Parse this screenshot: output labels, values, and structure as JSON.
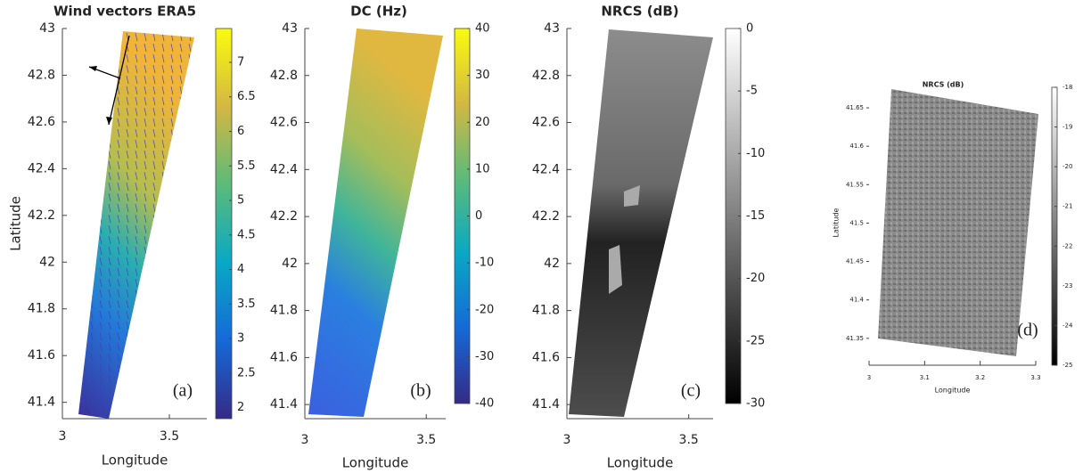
{
  "chart_data": [
    {
      "type": "image",
      "title": "Wind vectors ERA5",
      "xlabel": "Longitude",
      "ylabel": "Latitude",
      "panel_label": "(a)",
      "xlim": [
        3,
        3.675
      ],
      "xticks": [
        3,
        3.5
      ],
      "ylim": [
        41.33,
        43
      ],
      "yticks": [
        41.4,
        41.6,
        41.8,
        42,
        42.2,
        42.4,
        42.6,
        42.8,
        43
      ],
      "colormap": "parula",
      "clim": [
        1.84,
        7.49
      ],
      "cticks": [
        2,
        2.5,
        3,
        3.5,
        4,
        4.5,
        5,
        5.5,
        6,
        6.5,
        7
      ]
    },
    {
      "type": "image",
      "title": "DC (Hz)",
      "xlabel": "Longitude",
      "panel_label": "(b)",
      "xlim": [
        3,
        3.58
      ],
      "xticks": [
        3,
        3.5
      ],
      "ylim": [
        41.34,
        43
      ],
      "yticks": [
        41.4,
        41.6,
        41.8,
        42,
        42.2,
        42.4,
        42.6,
        42.8,
        43
      ],
      "colormap": "parula",
      "clim": [
        -40,
        40
      ],
      "cticks": [
        -40,
        -30,
        -20,
        -10,
        0,
        10,
        20,
        30,
        40
      ]
    },
    {
      "type": "image",
      "title": "NRCS (dB)",
      "xlabel": "Longitude",
      "panel_label": "(c)",
      "xlim": [
        3,
        3.6
      ],
      "xticks": [
        3,
        3.5
      ],
      "ylim": [
        41.34,
        43
      ],
      "yticks": [
        41.4,
        41.6,
        41.8,
        42,
        42.2,
        42.4,
        42.6,
        42.8,
        43
      ],
      "colormap": "gray",
      "clim": [
        -30,
        0
      ],
      "cticks": [
        -30,
        -25,
        -20,
        -15,
        -10,
        -5,
        0
      ]
    },
    {
      "type": "image",
      "title": "NRCS (dB)",
      "xlabel": "Longitude",
      "ylabel": "Latitude",
      "panel_label": "(d)",
      "xlim": [
        3,
        3.3
      ],
      "xticks": [
        3,
        3.1,
        3.2,
        3.3
      ],
      "ylim": [
        41.315,
        41.686
      ],
      "yticks": [
        41.35,
        41.4,
        41.45,
        41.5,
        41.55,
        41.6,
        41.65
      ],
      "colormap": "gray",
      "clim": [
        -25,
        -18
      ],
      "cticks": [
        -25,
        -24,
        -23,
        -22,
        -21,
        -20,
        -19,
        -18
      ]
    }
  ]
}
